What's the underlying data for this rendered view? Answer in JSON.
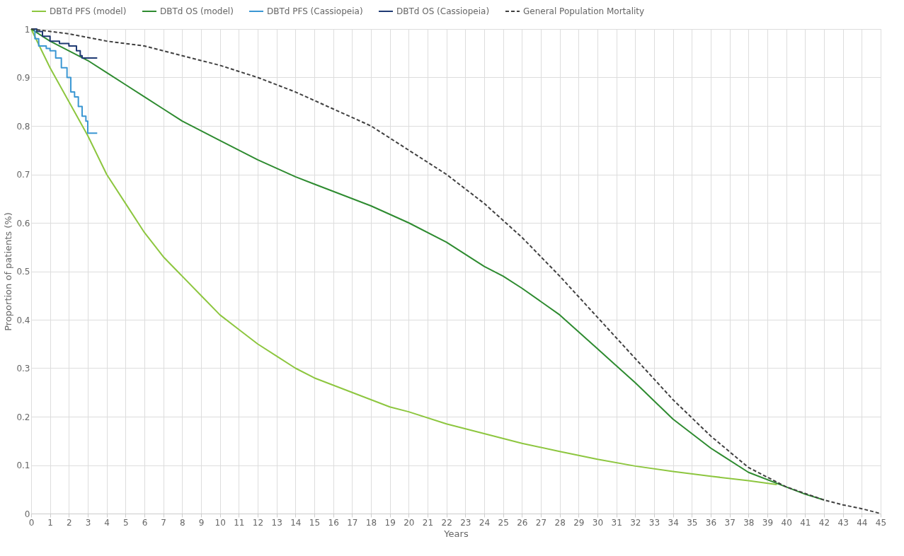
{
  "chart_data": {
    "type": "line",
    "xlabel": "Years",
    "ylabel": "Proportion of patients (%)",
    "xlim": [
      0,
      45
    ],
    "ylim": [
      0,
      1
    ],
    "xticks": [
      0,
      1,
      2,
      3,
      4,
      5,
      6,
      7,
      8,
      9,
      10,
      11,
      12,
      13,
      14,
      15,
      16,
      17,
      18,
      19,
      20,
      21,
      22,
      23,
      24,
      25,
      26,
      27,
      28,
      29,
      30,
      31,
      32,
      33,
      34,
      35,
      36,
      37,
      38,
      39,
      40,
      41,
      42,
      43,
      44,
      45
    ],
    "yticks": [
      0,
      0.1,
      0.2,
      0.3,
      0.4,
      0.5,
      0.6,
      0.7,
      0.8,
      0.9,
      1
    ],
    "grid": true,
    "legend": "top",
    "marker": "none",
    "series": [
      {
        "name": "DBTd PFS (model)",
        "color": "#8dc63f",
        "line_style": "solid",
        "x": [
          0,
          1,
          2,
          3,
          4,
          5,
          6,
          7,
          8,
          9,
          10,
          11,
          12,
          13,
          14,
          15,
          16,
          17,
          18,
          19,
          20,
          22,
          24,
          26,
          28,
          30,
          32,
          34,
          36,
          38,
          39.5
        ],
        "values": [
          1,
          0.92,
          0.85,
          0.78,
          0.7,
          0.64,
          0.58,
          0.53,
          0.49,
          0.45,
          0.41,
          0.38,
          0.35,
          0.325,
          0.3,
          0.28,
          0.265,
          0.25,
          0.235,
          0.22,
          0.21,
          0.185,
          0.165,
          0.145,
          0.128,
          0.112,
          0.098,
          0.087,
          0.077,
          0.068,
          0.06
        ]
      },
      {
        "name": "DBTd OS (model)",
        "color": "#2e8b30",
        "line_style": "solid",
        "x": [
          0,
          1,
          2,
          3,
          4,
          5,
          6,
          7,
          8,
          9,
          10,
          12,
          14,
          15,
          16,
          18,
          20,
          22,
          24,
          25,
          26,
          28,
          30,
          32,
          34,
          36,
          38,
          40,
          41,
          42
        ],
        "values": [
          1,
          0.975,
          0.955,
          0.935,
          0.91,
          0.885,
          0.86,
          0.835,
          0.81,
          0.79,
          0.77,
          0.73,
          0.695,
          0.68,
          0.665,
          0.635,
          0.6,
          0.56,
          0.51,
          0.49,
          0.465,
          0.41,
          0.34,
          0.27,
          0.195,
          0.135,
          0.085,
          0.055,
          0.04,
          0.028
        ]
      },
      {
        "name": "DBTd PFS (Cassiopeia)",
        "type": "step",
        "color": "#3b97d3",
        "line_style": "solid",
        "x": [
          0,
          0.2,
          0.4,
          0.8,
          1,
          1.3,
          1.6,
          1.9,
          2.1,
          2.3,
          2.5,
          2.7,
          2.9,
          3,
          3.5
        ],
        "values": [
          1,
          0.98,
          0.965,
          0.96,
          0.955,
          0.94,
          0.92,
          0.9,
          0.87,
          0.86,
          0.84,
          0.82,
          0.81,
          0.785,
          0.785
        ]
      },
      {
        "name": "DBTd OS (Cassiopeia)",
        "type": "step",
        "color": "#1f3a73",
        "line_style": "solid",
        "x": [
          0,
          0.3,
          0.6,
          1,
          1.5,
          2,
          2.4,
          2.6,
          2.7,
          3.5
        ],
        "values": [
          1,
          0.995,
          0.985,
          0.975,
          0.97,
          0.965,
          0.955,
          0.945,
          0.94,
          0.94
        ]
      },
      {
        "name": "General Population Mortality",
        "color": "#404040",
        "line_style": "dashed",
        "x": [
          0,
          2,
          4,
          6,
          8,
          10,
          12,
          14,
          16,
          18,
          20,
          22,
          24,
          26,
          28,
          30,
          32,
          34,
          36,
          38,
          40,
          42,
          43,
          44,
          45
        ],
        "values": [
          1,
          0.99,
          0.975,
          0.965,
          0.945,
          0.925,
          0.9,
          0.87,
          0.835,
          0.8,
          0.75,
          0.7,
          0.64,
          0.57,
          0.49,
          0.405,
          0.32,
          0.235,
          0.16,
          0.095,
          0.055,
          0.028,
          0.018,
          0.01,
          0
        ]
      }
    ]
  }
}
